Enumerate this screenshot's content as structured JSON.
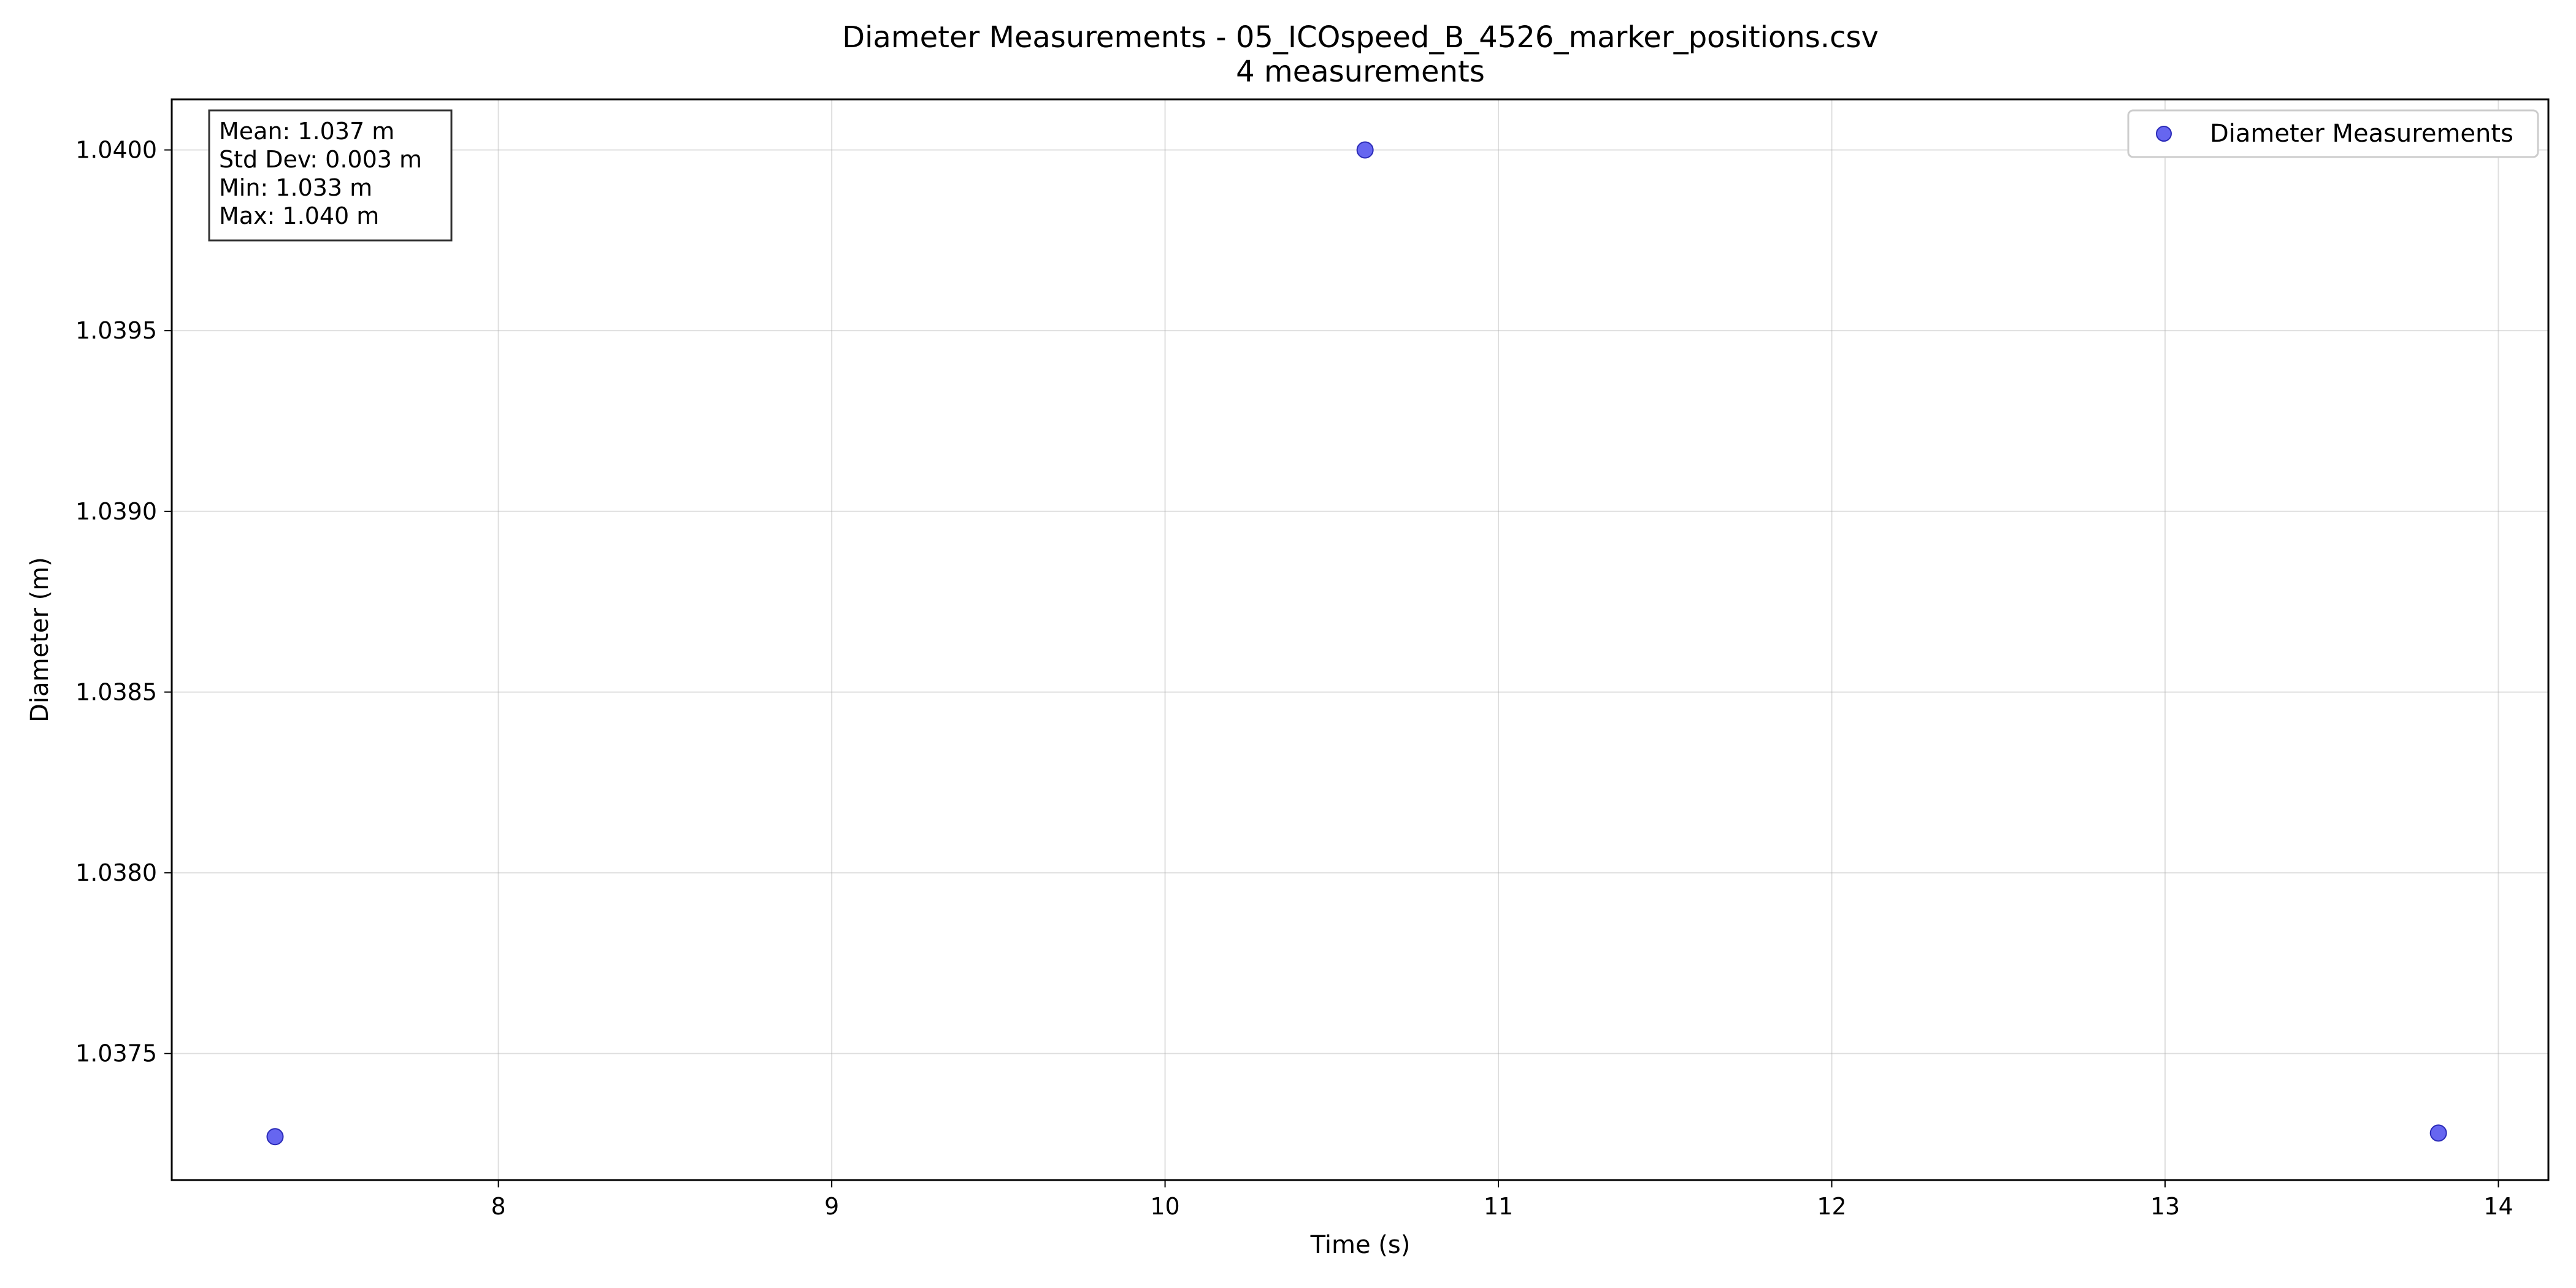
{
  "chart_data": {
    "type": "scatter",
    "title": "Diameter Measurements - 05_ICOspeed_B_4526_marker_positions.csv",
    "subtitle": "4 measurements",
    "xlabel": "Time (s)",
    "ylabel": "Diameter (m)",
    "xlim": [
      7.02,
      14.15
    ],
    "ylim": [
      1.03715,
      1.04014
    ],
    "x_ticks": [
      8,
      9,
      10,
      11,
      12,
      13,
      14
    ],
    "x_tick_labels": [
      "8",
      "9",
      "10",
      "11",
      "12",
      "13",
      "14"
    ],
    "y_ticks": [
      1.0375,
      1.038,
      1.0385,
      1.039,
      1.0395,
      1.04
    ],
    "y_tick_labels": [
      "1.0375",
      "1.0380",
      "1.0385",
      "1.0390",
      "1.0395",
      "1.0400"
    ],
    "grid": true,
    "legend_position": "top-right",
    "series": [
      {
        "name": "Diameter Measurements",
        "color": "#6666f0",
        "edge_color": "#2a2ab8",
        "x": [
          7.33,
          10.6,
          13.82
        ],
        "y": [
          1.03727,
          1.04,
          1.03728
        ]
      }
    ],
    "stats_box": {
      "position": "top-left",
      "lines": [
        "Mean: 1.037 m",
        "Std Dev: 0.003 m",
        "Min: 1.033 m",
        "Max: 1.040 m"
      ]
    }
  }
}
